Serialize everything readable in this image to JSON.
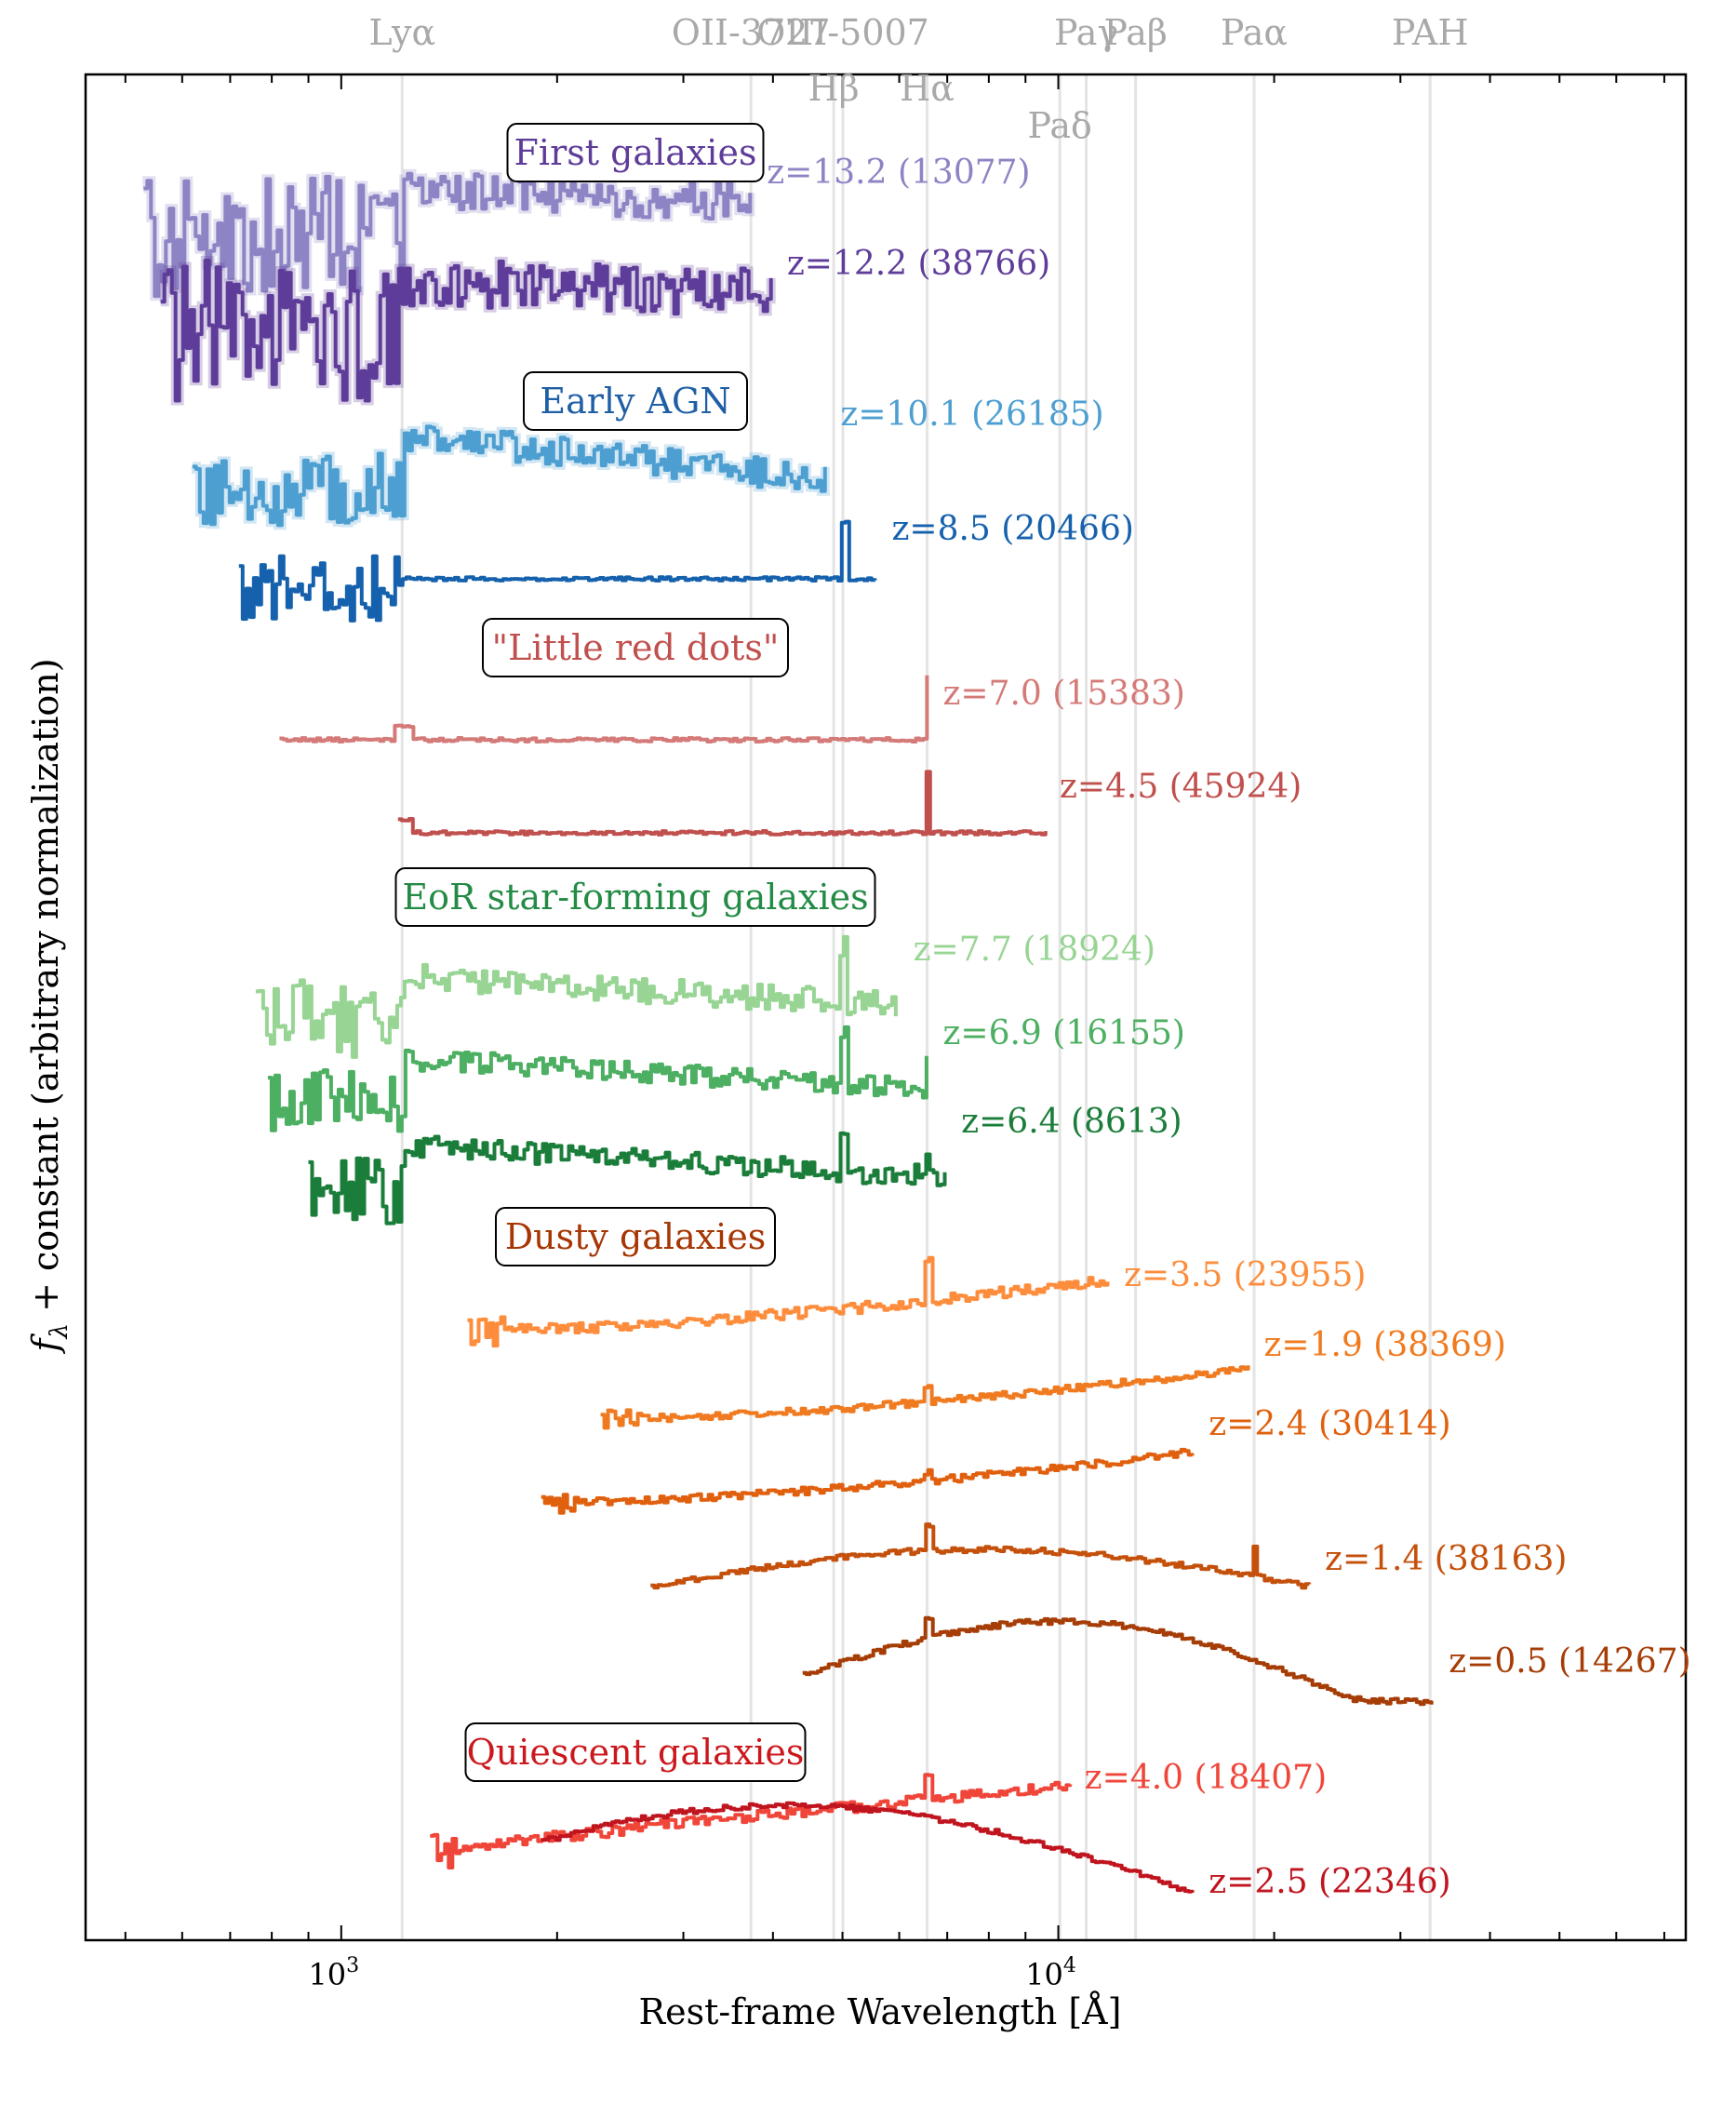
{
  "chart_data": {
    "type": "line",
    "xlabel": "Rest-frame Wavelength [Å]",
    "ylabel": "f_λ + constant (arbitrary normalization)",
    "ylabel_parts": {
      "f": "f",
      "sub": "λ",
      "rest": " + constant (arbitrary normalization)"
    },
    "xscale": "log",
    "xlim": [
      440,
      75000
    ],
    "x_tick_labels": [
      {
        "value": 1000,
        "base": "10",
        "exp": "3"
      },
      {
        "value": 10000,
        "base": "10",
        "exp": "4"
      }
    ],
    "emission_lines": [
      {
        "name": "Lyα",
        "wavelength": 1216,
        "row": 1
      },
      {
        "name": "OII-3727",
        "wavelength": 3727,
        "row": 1
      },
      {
        "name": "Hβ",
        "wavelength": 4861,
        "row": 2
      },
      {
        "name": "OIII-5007",
        "wavelength": 5007,
        "row": 1
      },
      {
        "name": "Hα",
        "wavelength": 6563,
        "row": 2
      },
      {
        "name": "Paδ",
        "wavelength": 10049,
        "row": 3
      },
      {
        "name": "Paγ",
        "wavelength": 10938,
        "row": 1
      },
      {
        "name": "Paβ",
        "wavelength": 12818,
        "row": 1
      },
      {
        "name": "Paα",
        "wavelength": 18751,
        "row": 1
      },
      {
        "name": "PAH",
        "wavelength": 33000,
        "row": 1
      }
    ],
    "groups": [
      {
        "name": "First galaxies",
        "color": "#5e3c99"
      },
      {
        "name": "Early AGN",
        "color": "#1f5fa6"
      },
      {
        "name": "\"Little red dots\"",
        "color": "#c0504d"
      },
      {
        "name": "EoR star-forming galaxies",
        "color": "#238b45"
      },
      {
        "name": "Dusty galaxies",
        "color": "#a63603"
      },
      {
        "name": "Quiescent galaxies",
        "color": "#cb181d"
      }
    ],
    "series": [
      {
        "name": "z=13.2 (13077)",
        "z": 13.2,
        "id": 13077,
        "color": "#8c84c4",
        "x_range": [
          530,
          3750
        ]
      },
      {
        "name": "z=12.2 (38766)",
        "z": 12.2,
        "id": 38766,
        "color": "#5e3c99",
        "x_range": [
          560,
          4000
        ]
      },
      {
        "name": "z=10.1 (26185)",
        "z": 10.1,
        "id": 26185,
        "color": "#4d9fd1",
        "x_range": [
          620,
          4750
        ]
      },
      {
        "name": "z=8.5 (20466)",
        "z": 8.5,
        "id": 20466,
        "color": "#1561ad",
        "x_range": [
          720,
          5600
        ]
      },
      {
        "name": "z=7.0 (15383)",
        "z": 7.0,
        "id": 15383,
        "color": "#d47a78",
        "x_range": [
          820,
          6600
        ]
      },
      {
        "name": "z=4.5 (45924)",
        "z": 4.5,
        "id": 45924,
        "color": "#c0504d",
        "x_range": [
          1200,
          9600
        ]
      },
      {
        "name": "z=7.7 (18924)",
        "z": 7.7,
        "id": 18924,
        "color": "#98d594",
        "x_range": [
          760,
          6000
        ]
      },
      {
        "name": "z=6.9 (16155)",
        "z": 6.9,
        "id": 16155,
        "color": "#4daf62",
        "x_range": [
          790,
          6600
        ]
      },
      {
        "name": "z=6.4 (8613)",
        "z": 6.4,
        "id": 8613,
        "color": "#1a7d3a",
        "x_range": [
          900,
          7000
        ]
      },
      {
        "name": "z=3.5 (23955)",
        "z": 3.5,
        "id": 23955,
        "color": "#fd8d3c",
        "x_range": [
          1500,
          11800
        ]
      },
      {
        "name": "z=1.9 (38369)",
        "z": 1.9,
        "id": 38369,
        "color": "#f07a1f",
        "x_range": [
          2300,
          18500
        ]
      },
      {
        "name": "z=2.4 (30414)",
        "z": 2.4,
        "id": 30414,
        "color": "#e0600e",
        "x_range": [
          1900,
          15500
        ]
      },
      {
        "name": "z=1.4 (38163)",
        "z": 1.4,
        "id": 38163,
        "color": "#c4500b",
        "x_range": [
          2700,
          22500
        ]
      },
      {
        "name": "z=0.5 (14267)",
        "z": 0.5,
        "id": 14267,
        "color": "#a63d06",
        "x_range": [
          4400,
          33500
        ]
      },
      {
        "name": "z=4.0 (18407)",
        "z": 4.0,
        "id": 18407,
        "color": "#f0463a",
        "x_range": [
          1330,
          10400
        ]
      },
      {
        "name": "z=2.5 (22346)",
        "z": 2.5,
        "id": 22346,
        "color": "#c0141e",
        "x_range": [
          1900,
          15500
        ]
      }
    ]
  }
}
